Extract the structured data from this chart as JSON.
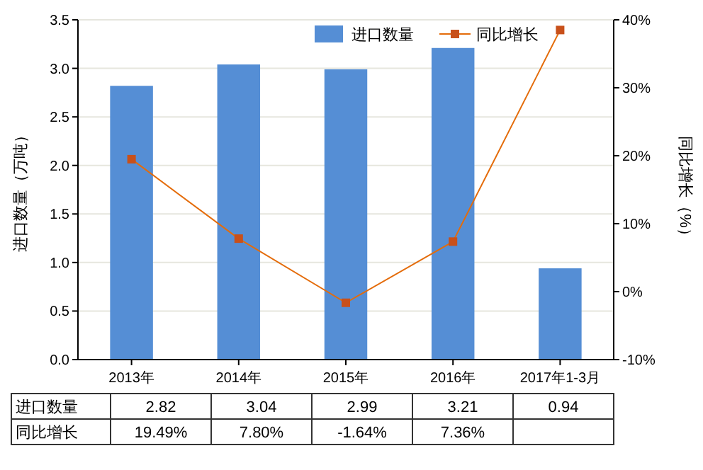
{
  "chart_data": {
    "type": "bar",
    "categories": [
      "2013年",
      "2014年",
      "2015年",
      "2016年",
      "2017年1-3月"
    ],
    "ylabel": "进口数量（万吨）",
    "y2label": "同比增长（%）",
    "series": [
      {
        "name": "进口数量",
        "color": "#558ed5",
        "values": [
          2.82,
          3.04,
          2.99,
          3.21,
          0.94
        ],
        "value_labels": [
          "2.82",
          "3.04",
          "2.99",
          "3.21",
          "0.94"
        ]
      },
      {
        "name": "同比增长",
        "type": "line",
        "axis": "y2",
        "color": "#e46c0a",
        "marker": "square",
        "values": [
          19.49,
          7.8,
          -1.64,
          7.36,
          38.5
        ],
        "value_labels": [
          "19.49%",
          "7.80%",
          "-1.64%",
          "7.36%",
          null
        ]
      }
    ],
    "ylim": [
      0,
      3.5
    ],
    "yticks": [
      {
        "value": 0,
        "label": "0.0"
      },
      {
        "value": 0.5,
        "label": "0.5"
      },
      {
        "value": 1,
        "label": "1.0"
      },
      {
        "value": 1.5,
        "label": "1.5"
      },
      {
        "value": 2,
        "label": "2.0"
      },
      {
        "value": 2.5,
        "label": "2.5"
      },
      {
        "value": 3,
        "label": "3.0"
      },
      {
        "value": 3.5,
        "label": "3.5"
      }
    ],
    "y2lim": [
      -10,
      40
    ],
    "y2ticks": [
      {
        "value": -10,
        "label": "-10%"
      },
      {
        "value": 0,
        "label": "0%"
      },
      {
        "value": 10,
        "label": "10%"
      },
      {
        "value": 20,
        "label": "20%"
      },
      {
        "value": 30,
        "label": "30%"
      },
      {
        "value": 40,
        "label": "40%"
      }
    ],
    "grid": "y",
    "legend": "top right"
  }
}
